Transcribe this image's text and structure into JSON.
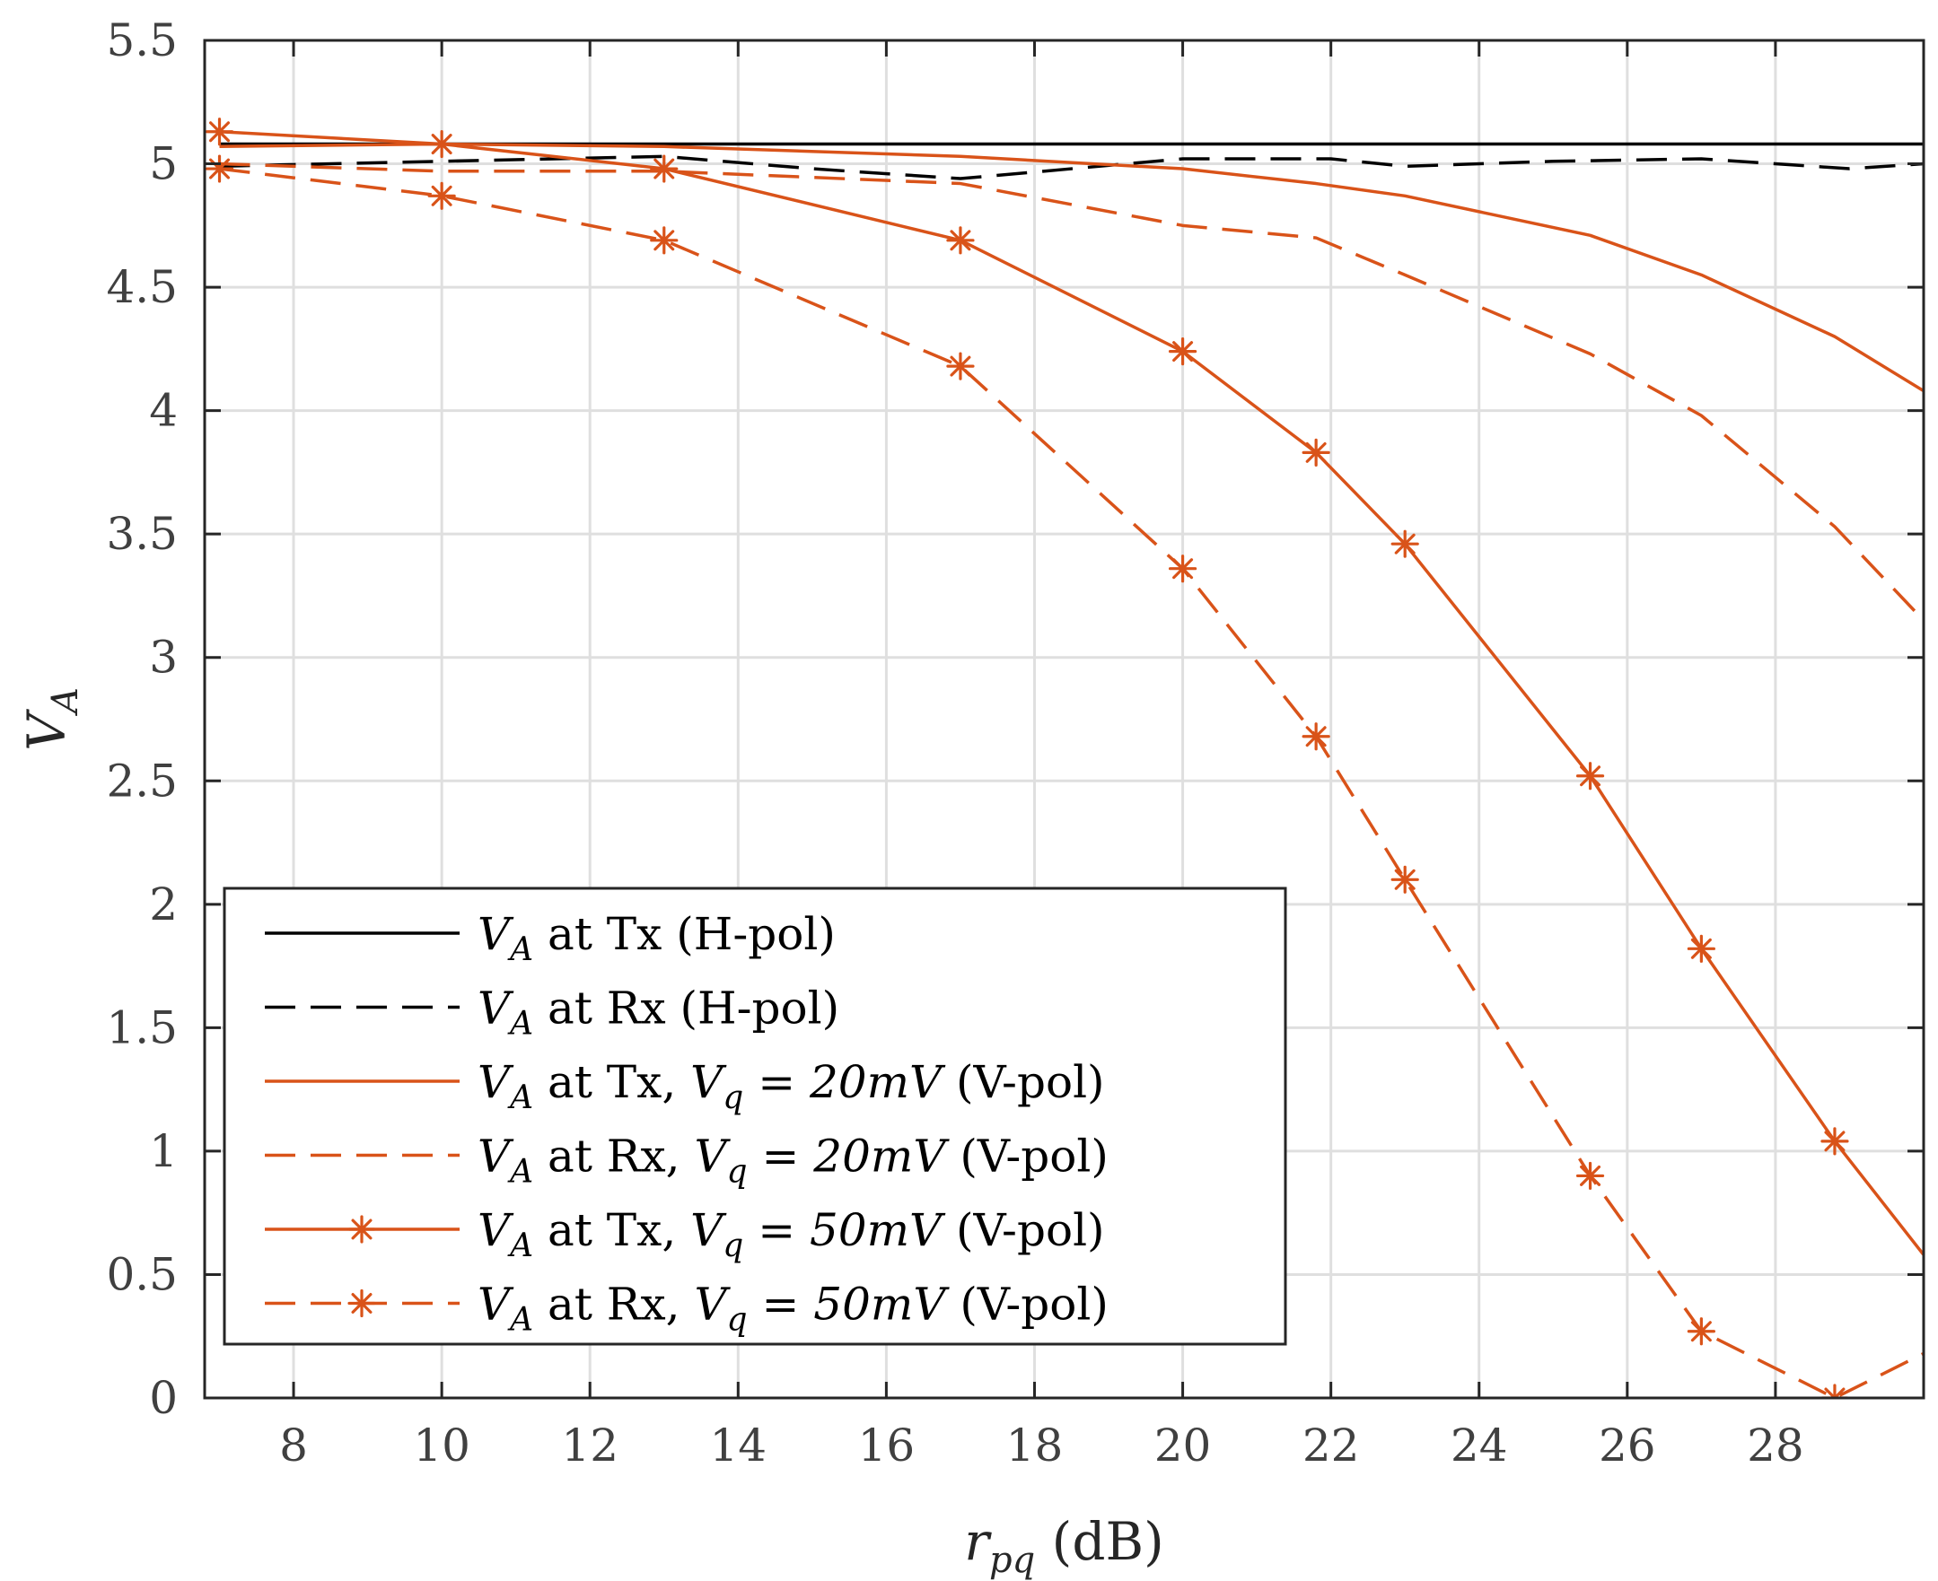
{
  "chart_data": {
    "type": "line",
    "title": "",
    "xlabel": "r_pq (dB)",
    "xlabel_main": "r",
    "xlabel_sub": "pq",
    "xlabel_unit": " (dB)",
    "ylabel": "V_A",
    "ylabel_main": "V",
    "ylabel_sub": "A",
    "xlim": [
      6.8,
      30
    ],
    "ylim": [
      0,
      5.5
    ],
    "xticks": [
      8,
      10,
      12,
      14,
      16,
      18,
      20,
      22,
      24,
      26,
      28
    ],
    "yticks": [
      0,
      0.5,
      1,
      1.5,
      2,
      2.5,
      3,
      3.5,
      4,
      4.5,
      5,
      5.5
    ],
    "ytick_labels": [
      "0",
      "0.5",
      "1",
      "1.5",
      "2",
      "2.5",
      "3",
      "3.5",
      "4",
      "4.5",
      "5",
      "5.5"
    ],
    "grid": true,
    "legend_position": "lower-left",
    "series": [
      {
        "name": "V_A at Tx (H-pol)",
        "label": {
          "pre": "",
          "post": " at Tx (H-pol)",
          "vq": ""
        },
        "color": "#000000",
        "dash": "solid",
        "marker": "none",
        "x": [
          7,
          30
        ],
        "y": [
          5.08,
          5.08
        ]
      },
      {
        "name": "V_A at Rx (H-pol)",
        "label": {
          "pre": "",
          "post": " at Rx (H-pol)",
          "vq": ""
        },
        "color": "#000000",
        "dash": "dashed",
        "marker": "none",
        "x": [
          7,
          10,
          13,
          15,
          17,
          20,
          22,
          23,
          25,
          27,
          29,
          30
        ],
        "y": [
          4.99,
          5.01,
          5.03,
          4.98,
          4.94,
          5.02,
          5.02,
          4.99,
          5.01,
          5.02,
          4.98,
          5.0
        ]
      },
      {
        "name": "V_A at Tx, V_q = 20mV (V-pol)",
        "label": {
          "pre": "",
          "post": " at Tx, ",
          "vq": "20mV"
        },
        "color": "#d95319",
        "dash": "solid",
        "marker": "none",
        "x": [
          7,
          10,
          13,
          17,
          20,
          21.8,
          23,
          25.5,
          27,
          28.8,
          30
        ],
        "y": [
          5.07,
          5.08,
          5.07,
          5.03,
          4.98,
          4.92,
          4.87,
          4.71,
          4.55,
          4.3,
          4.08
        ]
      },
      {
        "name": "V_A at Rx, V_q = 20mV (V-pol)",
        "label": {
          "pre": "",
          "post": " at Rx, ",
          "vq": "20mV"
        },
        "color": "#d95319",
        "dash": "dashed",
        "marker": "none",
        "x": [
          7,
          10,
          13,
          17,
          20,
          21.8,
          23,
          25.5,
          27,
          28.8,
          30
        ],
        "y": [
          5.0,
          4.97,
          4.97,
          4.92,
          4.75,
          4.7,
          4.55,
          4.23,
          3.98,
          3.53,
          3.15
        ]
      },
      {
        "name": "V_A at Tx, V_q = 50mV (V-pol)",
        "label": {
          "pre": "",
          "post": " at Tx, ",
          "vq": "50mV"
        },
        "color": "#d95319",
        "dash": "solid",
        "marker": "asterisk",
        "x": [
          7,
          10,
          13,
          17,
          20,
          21.8,
          23,
          25.5,
          27,
          28.8,
          30
        ],
        "y": [
          5.13,
          5.08,
          4.98,
          4.69,
          4.24,
          3.83,
          3.46,
          2.52,
          1.82,
          1.04,
          0.58
        ],
        "markers_x": [
          7,
          10,
          13,
          17,
          20,
          21.8,
          23,
          25.5,
          27,
          28.8
        ]
      },
      {
        "name": "V_A at Rx, V_q = 50mV (V-pol)",
        "label": {
          "pre": "",
          "post": " at Rx, ",
          "vq": "50mV"
        },
        "color": "#d95319",
        "dash": "dashed",
        "marker": "asterisk",
        "x": [
          7,
          10,
          13,
          17,
          20,
          21.8,
          23,
          25.5,
          27,
          28.8,
          30
        ],
        "y": [
          4.98,
          4.87,
          4.69,
          4.18,
          3.36,
          2.68,
          2.1,
          0.9,
          0.27,
          0.0,
          0.18
        ],
        "markers_x": [
          7,
          10,
          13,
          17,
          20,
          21.8,
          23,
          25.5,
          27,
          28.8
        ]
      }
    ],
    "legend_suffix": " (V-pol)",
    "legend_vq_main": "V",
    "legend_vq_sub": "q",
    "legend_eq": " = "
  }
}
